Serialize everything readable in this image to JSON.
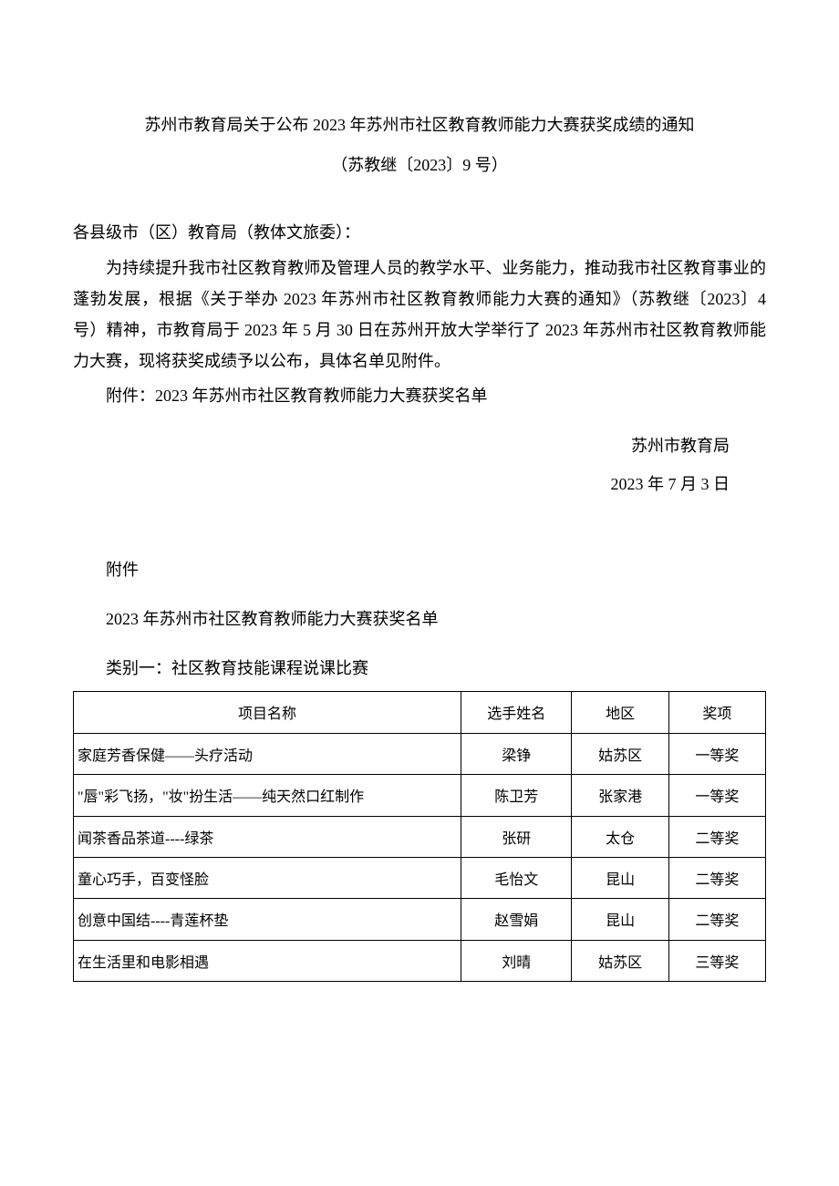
{
  "header": {
    "title": "苏州市教育局关于公布 2023 年苏州市社区教育教师能力大赛获奖成绩的通知",
    "doc_number": "（苏教继〔2023〕9 号）"
  },
  "body": {
    "salutation": "各县级市（区）教育局（教体文旅委）：",
    "para1": "为持续提升我市社区教育教师及管理人员的教学水平、业务能力，推动我市社区教育事业的蓬勃发展，根据《关于举办 2023 年苏州市社区教育教师能力大赛的通知》（苏教继〔2023〕4 号）精神，市教育局于 2023 年 5 月 30 日在苏州开放大学举行了 2023 年苏州市社区教育教师能力大赛，现将获奖成绩予以公布，具体名单见附件。",
    "attach_line": "附件：2023 年苏州市社区教育教师能力大赛获奖名单"
  },
  "signature": {
    "org": "苏州市教育局",
    "date": "2023 年 7 月 3 日"
  },
  "attachment": {
    "label": "附件",
    "title": "2023 年苏州市社区教育教师能力大赛获奖名单",
    "category": "类别一：社区教育技能课程说课比赛"
  },
  "table": {
    "columns": [
      "项目名称",
      "选手姓名",
      "地区",
      "奖项"
    ],
    "rows": [
      [
        "家庭芳香保健——头疗活动",
        "梁铮",
        "姑苏区",
        "一等奖"
      ],
      [
        "\"唇\"彩飞扬，\"妆\"扮生活——纯天然口红制作",
        "陈卫芳",
        "张家港",
        "一等奖"
      ],
      [
        "闻茶香品茶道----绿茶",
        "张研",
        "太仓",
        "二等奖"
      ],
      [
        "童心巧手，百变怪脸",
        "毛怡文",
        "昆山",
        "二等奖"
      ],
      [
        "创意中国结----青莲杯垫",
        "赵雪娟",
        "昆山",
        "二等奖"
      ],
      [
        "在生活里和电影相遇",
        "刘晴",
        "姑苏区",
        "三等奖"
      ]
    ]
  }
}
